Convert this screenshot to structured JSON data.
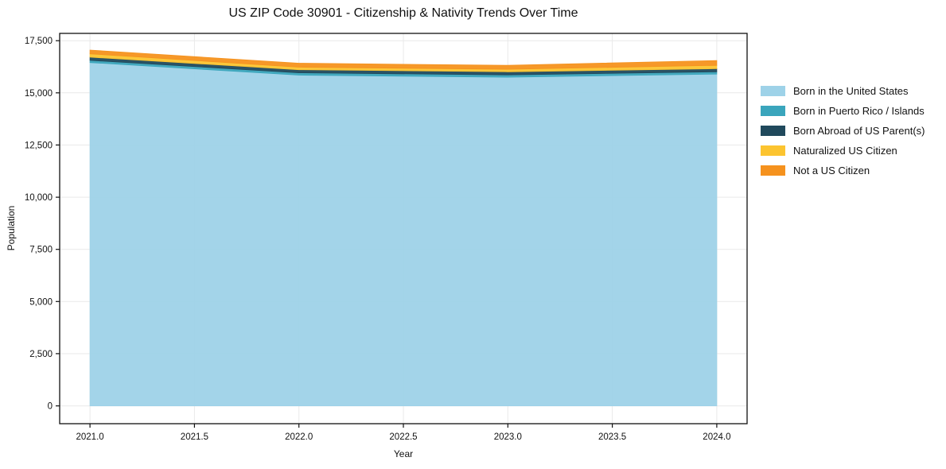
{
  "chart_data": {
    "type": "area",
    "stacked": true,
    "title": "US ZIP Code 30901 - Citizenship & Nativity Trends Over Time",
    "xlabel": "Year",
    "ylabel": "Population",
    "x": [
      2021,
      2022,
      2023,
      2024
    ],
    "series": [
      {
        "name": "Born in the United States",
        "color": "#9ed2e8",
        "values": [
          16450,
          15850,
          15750,
          15900
        ]
      },
      {
        "name": "Born in Puerto Rico / Islands",
        "color": "#3aa5bc",
        "values": [
          110,
          110,
          110,
          110
        ]
      },
      {
        "name": "Born Abroad of US Parent(s)",
        "color": "#20495c",
        "values": [
          150,
          150,
          150,
          150
        ]
      },
      {
        "name": "Naturalized US Citizen",
        "color": "#fcc430",
        "values": [
          160,
          120,
          120,
          160
        ]
      },
      {
        "name": "Not a US Citizen",
        "color": "#f5921e",
        "values": [
          180,
          190,
          190,
          230
        ]
      }
    ],
    "totals": [
      17050,
      16420,
      16320,
      16550
    ],
    "x_ticks": [
      2021.0,
      2021.5,
      2022.0,
      2022.5,
      2023.0,
      2023.5,
      2024.0
    ],
    "x_tick_labels": [
      "2021.0",
      "2021.5",
      "2022.0",
      "2022.5",
      "2023.0",
      "2023.5",
      "2024.0"
    ],
    "y_ticks": [
      0,
      2500,
      5000,
      7500,
      10000,
      12500,
      15000,
      17500
    ],
    "y_tick_labels": [
      "0",
      "2,500",
      "5,000",
      "7,500",
      "10,000",
      "12,500",
      "15,000",
      "17,500"
    ],
    "xlim": [
      2020.855,
      2024.145
    ],
    "ylim": [
      -855,
      17850
    ],
    "grid": true,
    "legend_position": "right",
    "colors": {
      "text": "#111111",
      "spine": "#111111",
      "grid": "#e9e9e9",
      "background": "#ffffff"
    }
  }
}
